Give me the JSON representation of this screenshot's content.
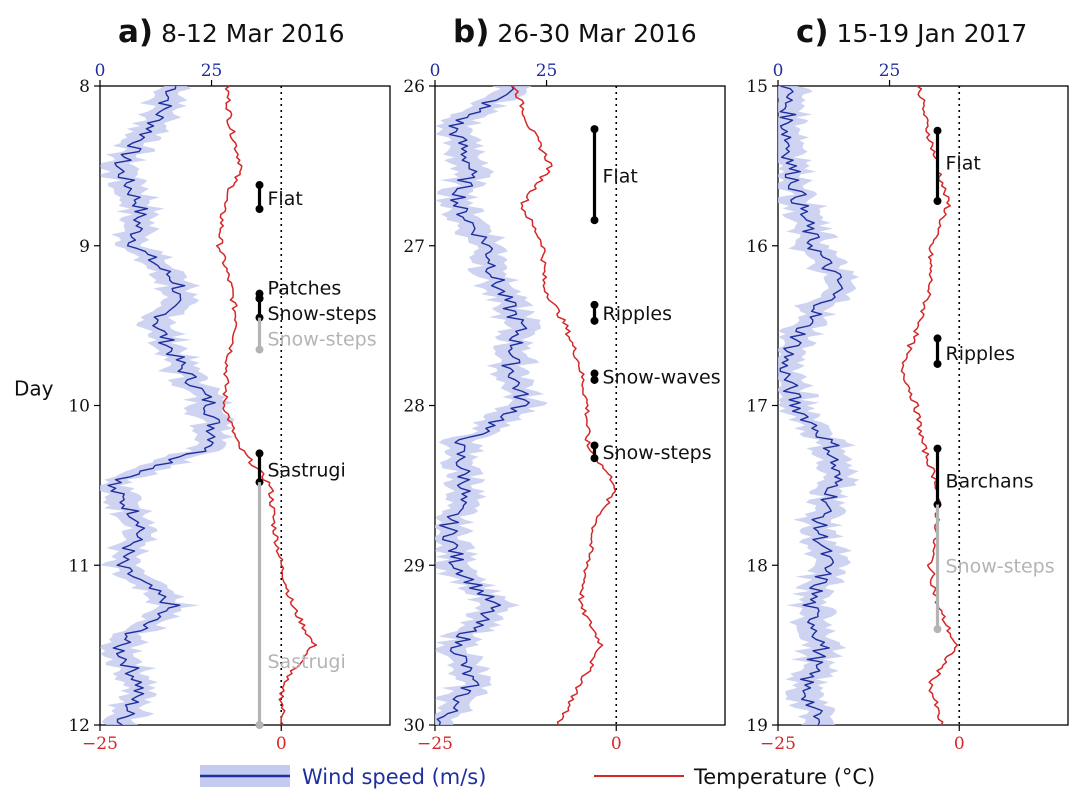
{
  "chart_data": [
    {
      "type": "line",
      "panel_letter": "a)",
      "title": "8-12 Mar 2016",
      "ylabel": "Day",
      "ylim": [
        8,
        12
      ],
      "y_ticks": [
        "8",
        "9",
        "10",
        "11",
        "12"
      ],
      "top_axis": {
        "range": [
          0,
          65
        ],
        "ticks": [
          "0",
          "25"
        ],
        "color": "#1f2f9f"
      },
      "bottom_axis": {
        "range": [
          -25,
          15
        ],
        "ticks": [
          "−25",
          "0"
        ],
        "color": "#d62728"
      },
      "reference_line": {
        "axis": "temperature",
        "value": 0
      },
      "series": [
        {
          "name": "Wind speed (m/s)",
          "axis": "top",
          "color": "#1f2f9f",
          "band_color": "#c5cbf0",
          "y": [
            8.0,
            8.25,
            8.5,
            8.75,
            9.0,
            9.25,
            9.5,
            9.75,
            10.0,
            10.25,
            10.5,
            10.75,
            11.0,
            11.25,
            11.5,
            11.75,
            12.0
          ],
          "values": [
            17,
            12,
            4,
            9,
            8,
            18,
            13,
            18,
            25,
            26,
            2,
            10,
            4,
            16,
            4,
            9,
            5
          ]
        },
        {
          "name": "Temperature (°C)",
          "axis": "bottom",
          "color": "#d62728",
          "y": [
            8.0,
            8.25,
            8.5,
            8.75,
            9.0,
            9.25,
            9.5,
            9.75,
            10.0,
            10.25,
            10.5,
            10.75,
            11.0,
            11.25,
            11.5,
            11.75,
            12.0
          ],
          "values": [
            -7.5,
            -7,
            -5.5,
            -8,
            -8.5,
            -7,
            -6,
            -7.5,
            -7.8,
            -6,
            -1.5,
            -1,
            0,
            1.5,
            4.5,
            0,
            0.3
          ]
        }
      ],
      "annotations": [
        {
          "label": "Flat",
          "start": 8.62,
          "end": 8.77,
          "color": "#000000",
          "label_at": 8.7
        },
        {
          "label": "Patches",
          "start": 9.3,
          "end": 9.33,
          "color": "#000000",
          "label_at": 9.26
        },
        {
          "label": "Snow-steps",
          "start": 9.33,
          "end": 9.45,
          "color": "#000000",
          "label_at": 9.42
        },
        {
          "label": "Snow-steps",
          "start": 9.45,
          "end": 9.65,
          "color": "#b4b4b4",
          "label_at": 9.58
        },
        {
          "label": "Sastrugi",
          "start": 10.3,
          "end": 10.48,
          "color": "#000000",
          "label_at": 10.4
        },
        {
          "label": "Sastrugi",
          "start": 10.48,
          "end": 12.0,
          "color": "#b4b4b4",
          "label_at": 11.6
        }
      ]
    },
    {
      "type": "line",
      "panel_letter": "b)",
      "title": "26-30 Mar 2016",
      "ylabel": "",
      "ylim": [
        26,
        30
      ],
      "y_ticks": [
        "26",
        "27",
        "28",
        "29",
        "30"
      ],
      "top_axis": {
        "range": [
          0,
          65
        ],
        "ticks": [
          "0",
          "25"
        ],
        "color": "#1f2f9f"
      },
      "bottom_axis": {
        "range": [
          -25,
          15
        ],
        "ticks": [
          "−25",
          "0"
        ],
        "color": "#d62728"
      },
      "reference_line": {
        "axis": "temperature",
        "value": 0
      },
      "series": [
        {
          "name": "Wind speed (m/s)",
          "axis": "top",
          "color": "#1f2f9f",
          "band_color": "#c5cbf0",
          "y": [
            26.0,
            26.25,
            26.5,
            26.75,
            27.0,
            27.25,
            27.5,
            27.75,
            28.0,
            28.25,
            28.5,
            28.75,
            29.0,
            29.25,
            29.5,
            29.75,
            30.0
          ],
          "values": [
            18,
            4,
            8,
            5,
            12,
            14,
            19,
            17,
            20,
            5,
            7,
            3,
            5,
            13,
            5,
            8,
            1
          ]
        },
        {
          "name": "Temperature (°C)",
          "axis": "bottom",
          "color": "#d62728",
          "y": [
            26.0,
            26.25,
            26.5,
            26.75,
            27.0,
            27.25,
            27.5,
            27.75,
            28.0,
            28.25,
            28.5,
            28.75,
            29.0,
            29.25,
            29.5,
            29.75,
            30.0
          ],
          "values": [
            -14,
            -12,
            -9,
            -13,
            -10,
            -10,
            -7,
            -5,
            -4,
            -4,
            0,
            -3,
            -4,
            -5,
            -2,
            -5,
            -8
          ]
        }
      ],
      "annotations": [
        {
          "label": "Flat",
          "start": 26.27,
          "end": 26.84,
          "color": "#000000",
          "label_at": 26.56
        },
        {
          "label": "Ripples",
          "start": 27.37,
          "end": 27.47,
          "color": "#000000",
          "label_at": 27.42
        },
        {
          "label": "Snow-waves",
          "start": 27.8,
          "end": 27.84,
          "color": "#000000",
          "label_at": 27.82
        },
        {
          "label": "Snow-steps",
          "start": 28.25,
          "end": 28.33,
          "color": "#000000",
          "label_at": 28.29
        }
      ]
    },
    {
      "type": "line",
      "panel_letter": "c)",
      "title": "15-19 Jan 2017",
      "ylabel": "",
      "ylim": [
        15,
        19
      ],
      "y_ticks": [
        "15",
        "16",
        "17",
        "18",
        "19"
      ],
      "top_axis": {
        "range": [
          0,
          65
        ],
        "ticks": [
          "0",
          "25"
        ],
        "color": "#1f2f9f"
      },
      "bottom_axis": {
        "range": [
          -25,
          15
        ],
        "ticks": [
          "−25",
          "0"
        ],
        "color": "#d62728"
      },
      "reference_line": {
        "axis": "temperature",
        "value": 0
      },
      "series": [
        {
          "name": "Wind speed (m/s)",
          "axis": "top",
          "color": "#1f2f9f",
          "band_color": "#c5cbf0",
          "y": [
            15.0,
            15.25,
            15.5,
            15.75,
            16.0,
            16.25,
            16.5,
            16.75,
            17.0,
            17.25,
            17.5,
            17.75,
            18.0,
            18.25,
            18.5,
            18.75,
            19.0
          ],
          "values": [
            2,
            2,
            3,
            5,
            8,
            14,
            6,
            1,
            4,
            12,
            13,
            9,
            11,
            7,
            10,
            6,
            9
          ]
        },
        {
          "name": "Temperature (°C)",
          "axis": "bottom",
          "color": "#d62728",
          "y": [
            15.0,
            15.25,
            15.5,
            15.75,
            16.0,
            16.25,
            16.5,
            16.75,
            17.0,
            17.25,
            17.5,
            17.75,
            18.0,
            18.25,
            18.5,
            18.75,
            19.0
          ],
          "values": [
            -5.5,
            -4.5,
            -3,
            -1.5,
            -4,
            -4,
            -5.5,
            -8,
            -6,
            -5,
            -3,
            -3,
            -4,
            -3,
            -0.5,
            -4,
            -2.5
          ]
        }
      ],
      "annotations": [
        {
          "label": "Flat",
          "start": 15.28,
          "end": 15.72,
          "color": "#000000",
          "label_at": 15.48
        },
        {
          "label": "Ripples",
          "start": 16.58,
          "end": 16.74,
          "color": "#000000",
          "label_at": 16.67
        },
        {
          "label": "Barchans",
          "start": 17.27,
          "end": 17.62,
          "color": "#000000",
          "label_at": 17.47
        },
        {
          "label": "Snow-steps",
          "start": 17.62,
          "end": 18.4,
          "color": "#b4b4b4",
          "label_at": 18.0
        }
      ]
    }
  ],
  "legend": {
    "placement": "bottom",
    "entries": [
      {
        "label": "Wind speed (m/s)",
        "color": "#1f2f9f",
        "band_color": "#c5cbf0"
      },
      {
        "label": "Temperature (°C)",
        "color": "#d62728"
      }
    ]
  }
}
